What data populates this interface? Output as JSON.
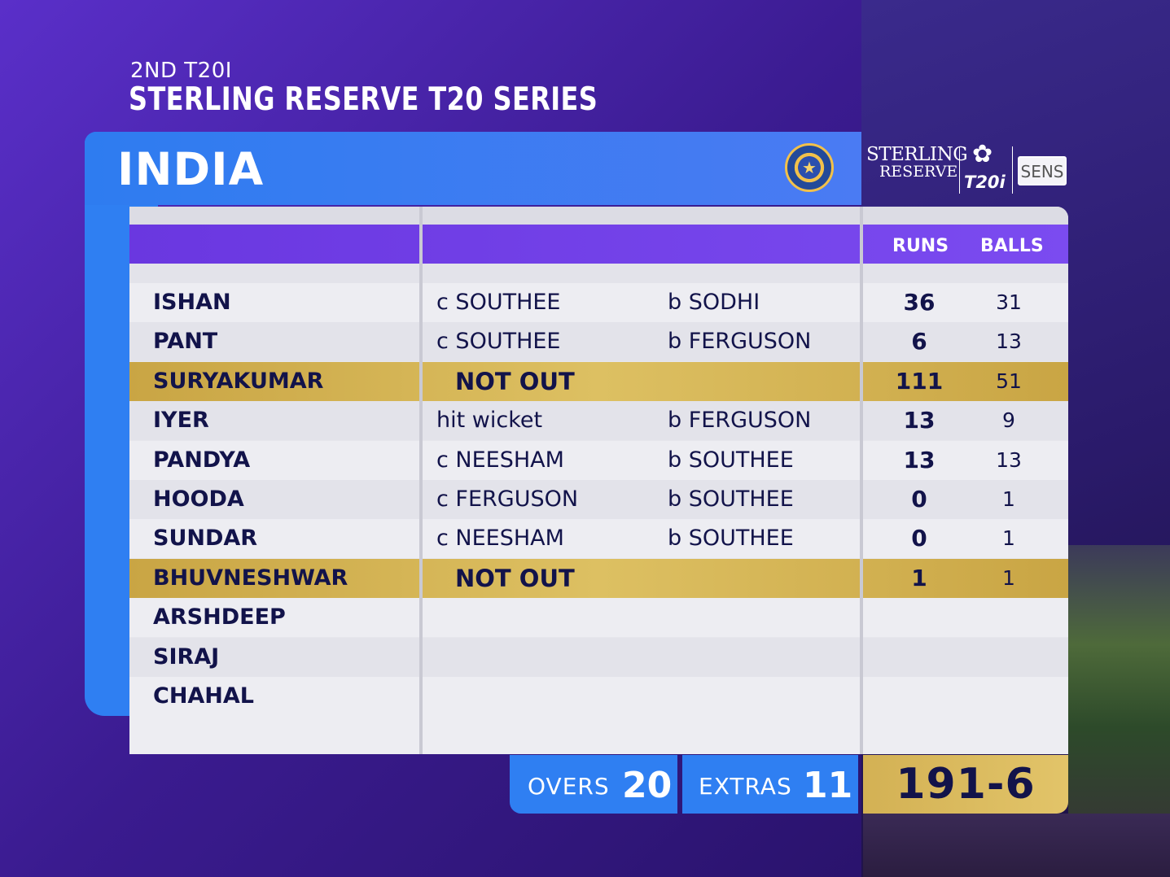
{
  "match": {
    "subtitle": "2ND T20I",
    "title": "STERLING RESERVE T20 SERIES"
  },
  "team": {
    "name": "INDIA",
    "emblem_icon": "bcci-emblem-icon"
  },
  "sponsor": {
    "brand": "STERLING",
    "brand_line2": "RESERVE",
    "series_logo": "T20i",
    "partner": "SENS"
  },
  "columns": {
    "runs": "RUNS",
    "balls": "BALLS"
  },
  "batters": [
    {
      "name": "ISHAN",
      "how_out": "c SOUTHEE",
      "bowler": "b SODHI",
      "runs": "36",
      "balls": "31"
    },
    {
      "name": "PANT",
      "how_out": "c SOUTHEE",
      "bowler": "b FERGUSON",
      "runs": "6",
      "balls": "13"
    },
    {
      "name": "SURYAKUMAR",
      "how_out": "NOT OUT",
      "bowler": "",
      "runs": "111",
      "balls": "51"
    },
    {
      "name": "IYER",
      "how_out": "hit wicket",
      "bowler": "b FERGUSON",
      "runs": "13",
      "balls": "9"
    },
    {
      "name": "PANDYA",
      "how_out": "c NEESHAM",
      "bowler": "b SOUTHEE",
      "runs": "13",
      "balls": "13"
    },
    {
      "name": "HOODA",
      "how_out": "c FERGUSON",
      "bowler": "b SOUTHEE",
      "runs": "0",
      "balls": "1"
    },
    {
      "name": "SUNDAR",
      "how_out": "c NEESHAM",
      "bowler": "b SOUTHEE",
      "runs": "0",
      "balls": "1"
    },
    {
      "name": "BHUVNESHWAR",
      "how_out": "NOT OUT",
      "bowler": "",
      "runs": "1",
      "balls": "1"
    },
    {
      "name": "ARSHDEEP",
      "how_out": "",
      "bowler": "",
      "runs": "",
      "balls": ""
    },
    {
      "name": "SIRAJ",
      "how_out": "",
      "bowler": "",
      "runs": "",
      "balls": ""
    },
    {
      "name": "CHAHAL",
      "how_out": "",
      "bowler": "",
      "runs": "",
      "balls": ""
    }
  ],
  "footer": {
    "overs_label": "OVERS",
    "overs_value": "20",
    "extras_label": "EXTRAS",
    "extras_value": "11",
    "total": "191-6"
  },
  "colors": {
    "accent_blue": "#2f7ff2",
    "header_purple": "#6a37e0",
    "not_out_gold": "#d3b154",
    "text_navy": "#12134a"
  }
}
